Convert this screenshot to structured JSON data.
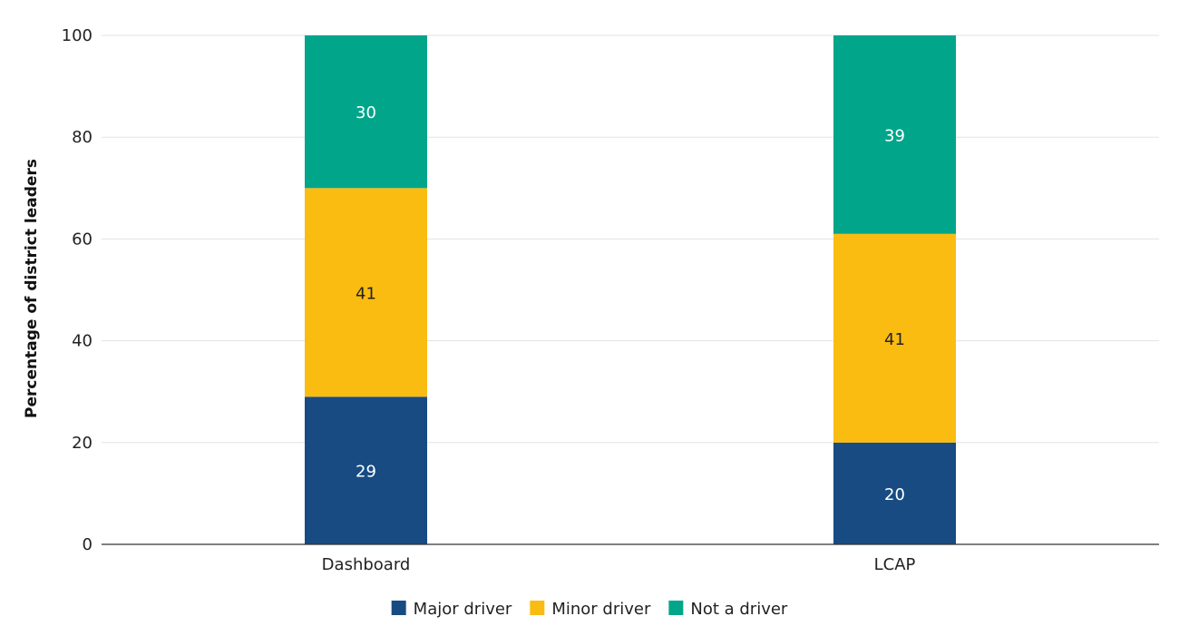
{
  "chart_data": {
    "type": "bar",
    "stacked": true,
    "title": "",
    "xlabel": "",
    "ylabel": "Percentage of district leaders",
    "ylim": [
      0,
      100
    ],
    "yticks": [
      0,
      20,
      40,
      60,
      80,
      100
    ],
    "grid": true,
    "legend_position": "bottom",
    "categories": [
      "Dashboard",
      "LCAP"
    ],
    "series": [
      {
        "name": "Major driver",
        "color": "#174b82",
        "label_color": "#ffffff",
        "values": [
          29,
          20
        ]
      },
      {
        "name": "Minor driver",
        "color": "#fbbc11",
        "label_color": "#222222",
        "values": [
          41,
          41
        ]
      },
      {
        "name": "Not a driver",
        "color": "#00a58a",
        "label_color": "#ffffff",
        "values": [
          30,
          39
        ]
      }
    ]
  }
}
